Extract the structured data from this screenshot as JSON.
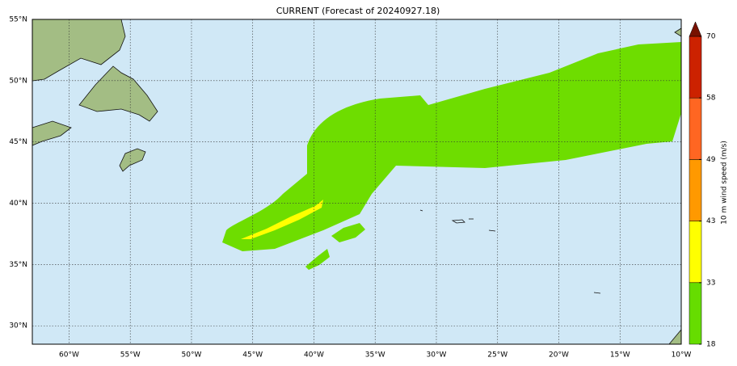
{
  "title": "CURRENT (Forecast of 20240927.18)",
  "map": {
    "xlim": [
      -63,
      -10
    ],
    "ylim": [
      28.5,
      55
    ],
    "xticks": [
      {
        "value": -60,
        "label": "60°W"
      },
      {
        "value": -55,
        "label": "55°W"
      },
      {
        "value": -50,
        "label": "50°W"
      },
      {
        "value": -45,
        "label": "45°W"
      },
      {
        "value": -40,
        "label": "40°W"
      },
      {
        "value": -35,
        "label": "35°W"
      },
      {
        "value": -30,
        "label": "30°W"
      },
      {
        "value": -25,
        "label": "25°W"
      },
      {
        "value": -20,
        "label": "20°W"
      },
      {
        "value": -15,
        "label": "15°W"
      },
      {
        "value": -10,
        "label": "10°W"
      }
    ],
    "yticks": [
      {
        "value": 30,
        "label": "30°N"
      },
      {
        "value": 35,
        "label": "35°N"
      },
      {
        "value": 40,
        "label": "40°N"
      },
      {
        "value": 45,
        "label": "45°N"
      },
      {
        "value": 50,
        "label": "50°N"
      },
      {
        "value": 55,
        "label": "55°N"
      }
    ]
  },
  "colorbar": {
    "label": "10 m wind speed (m/s)",
    "levels": [
      18,
      33,
      43,
      49,
      58,
      70
    ],
    "colors": [
      "#66dd00",
      "#ffff00",
      "#ff9900",
      "#ff6622",
      "#cc2200"
    ],
    "extend_color": "#771100"
  }
}
